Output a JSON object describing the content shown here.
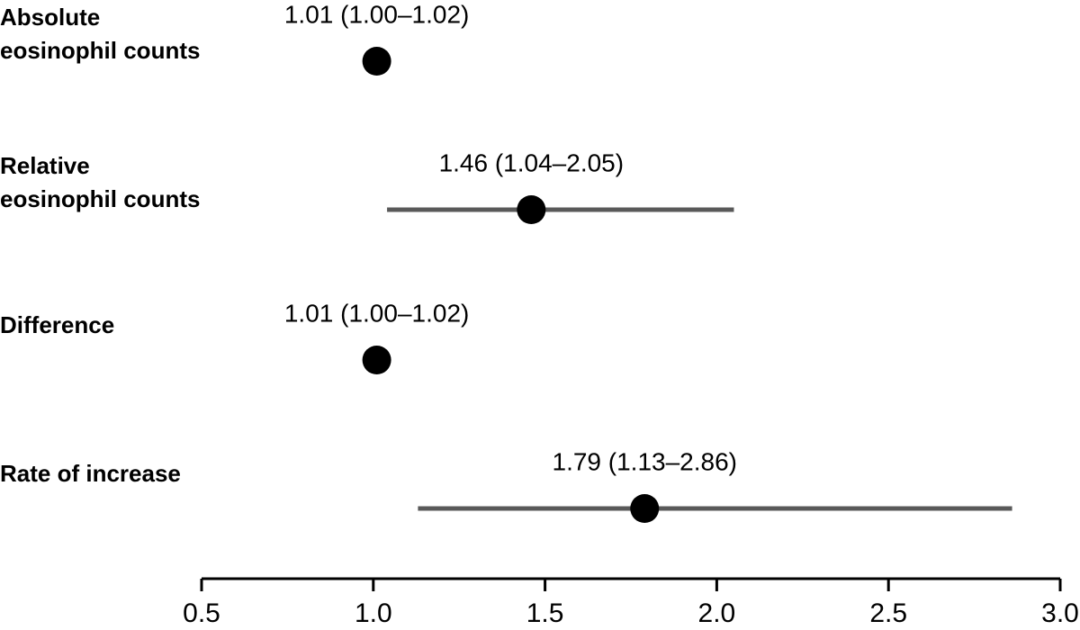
{
  "chart_data": {
    "type": "forest",
    "categories": [
      [
        "Absolute",
        "eosinophil counts"
      ],
      [
        "Relative",
        "eosinophil counts"
      ],
      [
        "Difference"
      ],
      [
        "Rate of increase"
      ]
    ],
    "values": [
      1.01,
      1.46,
      1.01,
      1.79
    ],
    "lower": [
      1.0,
      1.04,
      1.0,
      1.13
    ],
    "upper": [
      1.02,
      2.05,
      1.02,
      2.86
    ],
    "value_labels": [
      "1.01 (1.00–1.02)",
      "1.46 (1.04–2.05)",
      "1.01 (1.00–1.02)",
      "1.79 (1.13–2.86)"
    ],
    "color": "#000000",
    "error_color": "#595959",
    "xlim": [
      0.5,
      3.0
    ],
    "xticks": [
      0.5,
      {
        "value": 1,
        "label": "1.0"
      },
      1.5,
      {
        "value": 2,
        "label": "2.0"
      },
      2.5,
      {
        "value": 3,
        "label": "3.0"
      }
    ]
  }
}
